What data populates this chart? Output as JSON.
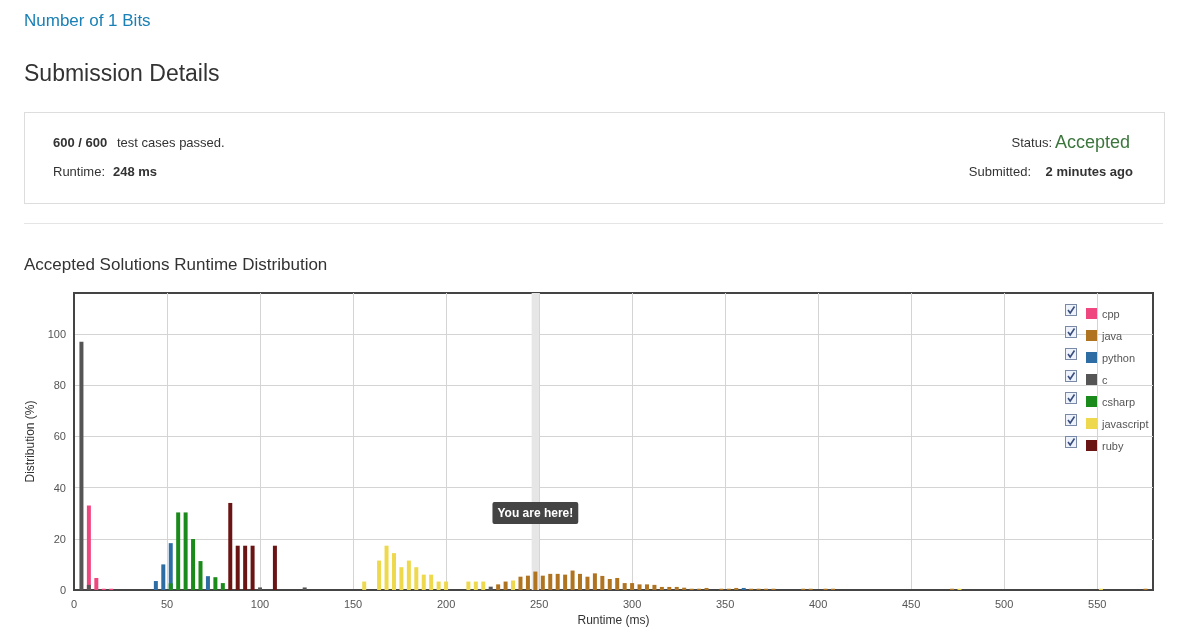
{
  "chart_data": {
    "type": "bar",
    "title": "Accepted Solutions Runtime Distribution",
    "annotations": [
      "Number of 1 Bits",
      "Submission Details",
      "600 / 600",
      "test cases passed.",
      "Runtime:",
      "248 ms",
      "Status:",
      "Accepted",
      "Submitted:",
      "2 minutes ago"
    ],
    "xlabel": "Runtime (ms)",
    "ylabel": "Distribution (%)",
    "xlim": [
      0,
      580
    ],
    "xticks": [
      0,
      50,
      100,
      150,
      200,
      250,
      300,
      350,
      400,
      450,
      500,
      550
    ],
    "ylim": [
      0,
      116
    ],
    "yticks": [
      0,
      20,
      40,
      60,
      80,
      100
    ],
    "grid": true,
    "legend": "top right",
    "bands": [
      {
        "axis": "x",
        "from": 246,
        "to": 250,
        "label": "You are here!",
        "color": "#e6e6e6"
      }
    ],
    "series": [
      {
        "name": "cpp",
        "color": "#f0467f",
        "x": [
          8,
          12,
          16,
          20
        ],
        "values": [
          33,
          4.7,
          0.5,
          0.5
        ]
      },
      {
        "name": "java",
        "color": "#b0731f",
        "x": [
          228,
          232,
          240,
          244,
          248,
          252,
          256,
          260,
          264,
          268,
          272,
          276,
          280,
          284,
          288,
          292,
          296,
          300,
          304,
          308,
          312,
          316,
          320,
          324,
          328,
          332,
          336,
          340,
          348,
          352,
          356,
          364,
          368,
          372,
          376,
          392,
          396,
          404,
          408,
          472,
          576
        ],
        "values": [
          2.2,
          3.3,
          5.2,
          5.6,
          7.2,
          5.6,
          6.3,
          6.3,
          6,
          7.6,
          6.3,
          5.2,
          6.5,
          5.5,
          4.3,
          4.7,
          2.7,
          2.7,
          2.2,
          2.2,
          2,
          1.2,
          1.2,
          1.2,
          0.9,
          0.5,
          0.5,
          0.8,
          0.5,
          0.5,
          0.8,
          0.5,
          0.5,
          0.5,
          0.5,
          0.5,
          0.5,
          0.5,
          0.5,
          0.5,
          0.5
        ]
      },
      {
        "name": "python",
        "color": "#2e6da4",
        "x": [
          44,
          48,
          52,
          72,
          360
        ],
        "values": [
          3.5,
          10,
          18.3,
          5.4,
          0.8
        ]
      },
      {
        "name": "c",
        "color": "#555555",
        "x": [
          4,
          8,
          100,
          124,
          224
        ],
        "values": [
          97,
          2,
          1,
          1,
          1.3
        ]
      },
      {
        "name": "csharp",
        "color": "#1a8a1a",
        "x": [
          52,
          56,
          60,
          64,
          68,
          76,
          80
        ],
        "values": [
          2.6,
          30.3,
          30.3,
          19.9,
          11.3,
          5,
          2.7
        ]
      },
      {
        "name": "javascript",
        "color": "#eed84d",
        "x": [
          156,
          164,
          168,
          172,
          176,
          180,
          184,
          188,
          192,
          196,
          200,
          212,
          216,
          220,
          236,
          476,
          552
        ],
        "values": [
          3.3,
          11.5,
          17.3,
          14.4,
          8.9,
          11.5,
          8.9,
          6,
          6,
          3.3,
          3.3,
          3.3,
          3.3,
          3.3,
          3.7,
          0.5,
          0.5
        ]
      },
      {
        "name": "ruby",
        "color": "#6b1414",
        "x": [
          84,
          88,
          92,
          96,
          108
        ],
        "values": [
          34,
          17.3,
          17.3,
          17.3,
          17.3
        ]
      }
    ]
  }
}
